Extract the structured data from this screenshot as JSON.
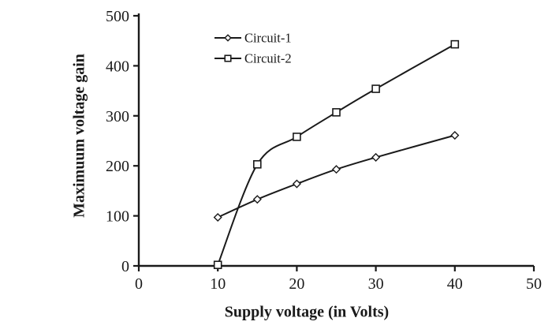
{
  "colors": {
    "line": "#1a1a1a",
    "text": "#1a1a1a",
    "background": "#ffffff"
  },
  "chart_data": {
    "type": "line",
    "title": "",
    "xlabel": "Supply voltage (in Volts)",
    "ylabel": "Maximuum voltage gain",
    "xlim": [
      0,
      50
    ],
    "ylim": [
      0,
      500
    ],
    "x_ticks": [
      0,
      10,
      20,
      30,
      40,
      50
    ],
    "y_ticks": [
      0,
      100,
      200,
      300,
      400,
      500
    ],
    "grid": false,
    "legend_position": "inside-top-left",
    "series": [
      {
        "name": "Circuit-1",
        "marker": "diamond",
        "color": "#1a1a1a",
        "x": [
          10,
          15,
          20,
          25,
          30,
          40
        ],
        "y": [
          97,
          133,
          164,
          193,
          217,
          261
        ]
      },
      {
        "name": "Circuit-2",
        "marker": "square",
        "color": "#1a1a1a",
        "x": [
          10,
          15,
          20,
          25,
          30,
          40
        ],
        "y": [
          2,
          203,
          258,
          307,
          354,
          443
        ]
      }
    ]
  }
}
